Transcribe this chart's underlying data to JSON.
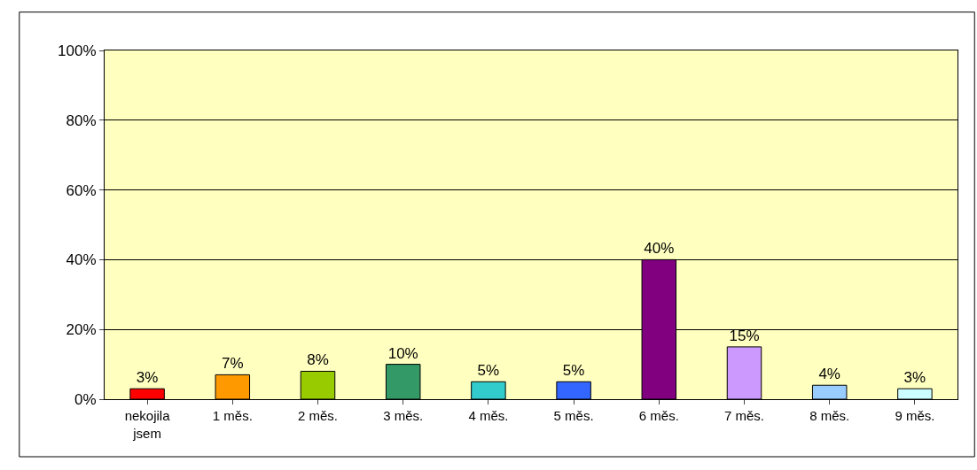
{
  "chart_data": {
    "type": "bar",
    "categories": [
      "nekojila jsem",
      "1 měs.",
      "2 měs.",
      "3 měs.",
      "4 měs.",
      "5 měs.",
      "6 měs.",
      "7 měs.",
      "8 měs.",
      "9 měs."
    ],
    "values": [
      3,
      7,
      8,
      10,
      5,
      5,
      40,
      15,
      4,
      3
    ],
    "colors": [
      "#ff0000",
      "#ff9900",
      "#99cc00",
      "#339966",
      "#33cccc",
      "#3366ff",
      "#800080",
      "#cc99ff",
      "#99ccff",
      "#ccffff"
    ],
    "value_labels": [
      "3%",
      "7%",
      "8%",
      "10%",
      "5%",
      "5%",
      "40%",
      "15%",
      "4%",
      "3%"
    ],
    "ylim": [
      0,
      100
    ],
    "yticks": [
      {
        "value": 0,
        "label": "0%"
      },
      {
        "value": 20,
        "label": "20%"
      },
      {
        "value": 40,
        "label": "40%"
      },
      {
        "value": 60,
        "label": "60%"
      },
      {
        "value": 80,
        "label": "80%"
      },
      {
        "value": 100,
        "label": "100%"
      }
    ],
    "grid": "y",
    "legend": false
  }
}
